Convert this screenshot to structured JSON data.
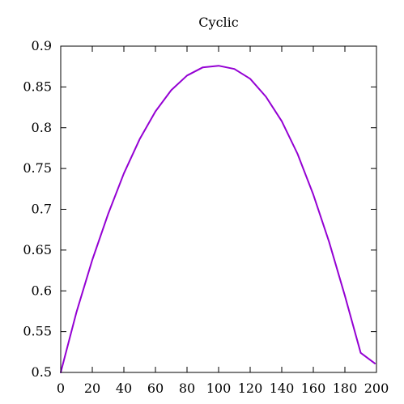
{
  "chart_data": {
    "type": "line",
    "title": "Cyclic",
    "xlabel": "",
    "ylabel": "",
    "xlim": [
      0,
      200
    ],
    "ylim": [
      0.5,
      0.9
    ],
    "x_ticks": [
      0,
      20,
      40,
      60,
      80,
      100,
      120,
      140,
      160,
      180,
      200
    ],
    "x_tick_labels": [
      "0",
      "20",
      "40",
      "60",
      "80",
      "100",
      "120",
      "140",
      "160",
      "180",
      "200"
    ],
    "y_ticks": [
      0.5,
      0.55,
      0.6,
      0.65,
      0.7,
      0.75,
      0.8,
      0.85,
      0.9
    ],
    "y_tick_labels": [
      "0.5",
      "0.55",
      "0.6",
      "0.65",
      "0.7",
      "0.75",
      "0.8",
      "0.85",
      "0.9"
    ],
    "grid": false,
    "legend": "none",
    "series": [
      {
        "color": "#9400d3",
        "x": [
          0,
          10,
          20,
          30,
          40,
          50,
          60,
          70,
          80,
          90,
          100,
          110,
          120,
          130,
          140,
          150,
          160,
          170,
          180,
          190,
          199
        ],
        "y": [
          0.5,
          0.574,
          0.638,
          0.694,
          0.744,
          0.786,
          0.82,
          0.846,
          0.864,
          0.874,
          0.876,
          0.872,
          0.86,
          0.838,
          0.808,
          0.768,
          0.718,
          0.66,
          0.594,
          0.524,
          0.511
        ]
      }
    ]
  }
}
